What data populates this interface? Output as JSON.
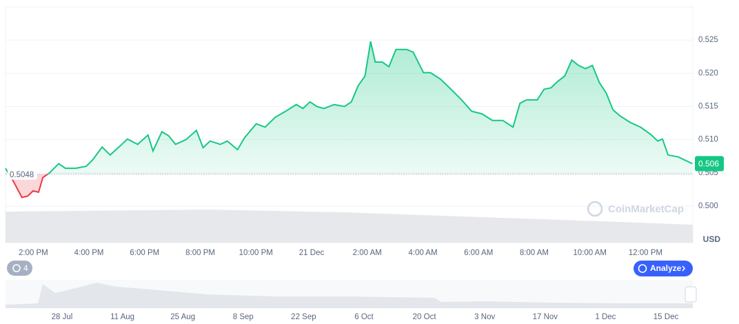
{
  "chart_data": {
    "type": "line",
    "x": [
      13.0,
      13.3,
      13.59,
      13.79,
      13.99,
      14.19,
      14.34,
      14.58,
      14.91,
      15.15,
      15.52,
      15.9,
      16.14,
      16.47,
      16.76,
      17.13,
      17.38,
      17.75,
      18.12,
      18.3,
      18.62,
      18.86,
      19.11,
      19.48,
      19.86,
      20.1,
      20.35,
      20.72,
      20.97,
      21.34,
      21.59,
      22.01,
      22.33,
      22.7,
      23.07,
      23.45,
      23.69,
      23.94,
      24.19,
      24.44,
      24.81,
      25.18,
      25.43,
      25.67,
      25.92,
      26.12,
      26.29,
      26.54,
      26.78,
      27.03,
      27.41,
      27.65,
      28.02,
      28.27,
      28.64,
      29.01,
      29.39,
      29.75,
      30.12,
      30.5,
      30.87,
      31.24,
      31.49,
      31.73,
      32.11,
      32.35,
      32.6,
      32.85,
      33.1,
      33.35,
      33.59,
      33.84,
      34.09,
      34.34,
      34.59,
      34.83,
      35.08,
      35.45,
      35.82,
      36.19,
      36.44,
      36.61,
      36.81,
      37.18,
      37.68
    ],
    "values": [
      0.5057,
      0.5036,
      0.5013,
      0.5015,
      0.5023,
      0.5021,
      0.5043,
      0.505,
      0.5064,
      0.5057,
      0.5057,
      0.506,
      0.507,
      0.5089,
      0.5077,
      0.5091,
      0.5101,
      0.5093,
      0.5107,
      0.5083,
      0.5112,
      0.5106,
      0.5093,
      0.51,
      0.5114,
      0.5088,
      0.5098,
      0.5093,
      0.5098,
      0.5085,
      0.5103,
      0.5124,
      0.5119,
      0.5134,
      0.5143,
      0.5153,
      0.5147,
      0.5157,
      0.515,
      0.5147,
      0.5153,
      0.515,
      0.5157,
      0.5181,
      0.5196,
      0.5248,
      0.5217,
      0.5217,
      0.521,
      0.5236,
      0.5236,
      0.5232,
      0.5201,
      0.5201,
      0.5191,
      0.5176,
      0.516,
      0.5143,
      0.5139,
      0.5129,
      0.5129,
      0.5119,
      0.5155,
      0.516,
      0.516,
      0.5176,
      0.5178,
      0.5188,
      0.5196,
      0.522,
      0.5212,
      0.5207,
      0.5212,
      0.5186,
      0.517,
      0.5145,
      0.5136,
      0.5126,
      0.5119,
      0.5108,
      0.5098,
      0.5101,
      0.5077,
      0.5074,
      0.5064
    ],
    "up_color": "#16c784",
    "down_color": "#ea3943",
    "baseline": 0.5048,
    "current_price": {
      "value": 0.5064,
      "label": "0.506"
    },
    "xlim": [
      13,
      37.7
    ],
    "xticks": [
      {
        "value": 14,
        "label": "2:00 PM"
      },
      {
        "value": 16,
        "label": "4:00 PM"
      },
      {
        "value": 18,
        "label": "6:00 PM"
      },
      {
        "value": 20,
        "label": "8:00 PM"
      },
      {
        "value": 22,
        "label": "10:00 PM"
      },
      {
        "value": 24,
        "label": "21 Dec"
      },
      {
        "value": 26,
        "label": "2:00 AM"
      },
      {
        "value": 28,
        "label": "4:00 AM"
      },
      {
        "value": 30,
        "label": "6:00 AM"
      },
      {
        "value": 32,
        "label": "8:00 AM"
      },
      {
        "value": 34,
        "label": "10:00 AM"
      },
      {
        "value": 36,
        "label": "12:00 PM"
      }
    ],
    "ylim": [
      0.4945,
      0.53
    ],
    "yticks": [
      {
        "value": 0.5,
        "label": "0.500"
      },
      0.505,
      {
        "value": 0.51,
        "label": "0.510"
      },
      0.515,
      {
        "value": 0.52,
        "label": "0.520"
      },
      0.525
    ],
    "grid": true,
    "currency": "USD",
    "watermark": "CoinMarketCap",
    "annotation_count": 4,
    "analyze_button": "Analyze",
    "navigator_labels": [
      "28 Jul",
      "11 Aug",
      "25 Aug",
      "8 Sep",
      "22 Sep",
      "6 Oct",
      "20 Oct",
      "3 Nov",
      "17 Nov",
      "1 Dec",
      "15 Dec"
    ]
  }
}
